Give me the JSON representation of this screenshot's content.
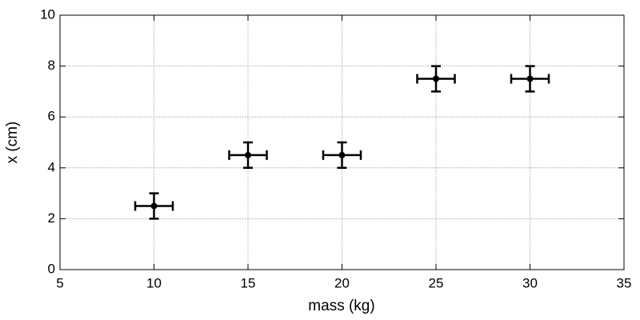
{
  "chart_data": {
    "type": "scatter",
    "xlabel": "mass (kg)",
    "ylabel": "x (cm)",
    "x": [
      10,
      15,
      20,
      25,
      30
    ],
    "y": [
      2.5,
      4.5,
      4.5,
      7.5,
      7.5
    ],
    "xerr": [
      1,
      1,
      1,
      1,
      1
    ],
    "yerr": [
      0.5,
      0.5,
      0.5,
      0.5,
      0.5
    ],
    "color": "#000000",
    "xlim": [
      5,
      35
    ],
    "ylim": [
      0,
      10
    ],
    "xticks": [
      5,
      10,
      15,
      20,
      25,
      30,
      35
    ],
    "yticks": [
      0,
      2,
      4,
      6,
      8,
      10
    ],
    "grid": true
  }
}
